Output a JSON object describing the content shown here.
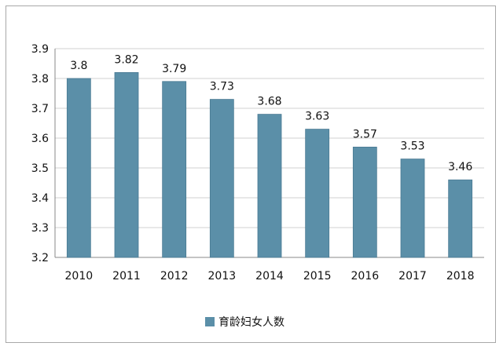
{
  "chart_data": {
    "type": "bar",
    "categories": [
      "2010",
      "2011",
      "2012",
      "2013",
      "2014",
      "2015",
      "2016",
      "2017",
      "2018"
    ],
    "series": [
      {
        "name": "育龄妇女人数",
        "values": [
          3.8,
          3.82,
          3.79,
          3.73,
          3.68,
          3.63,
          3.57,
          3.53,
          3.46
        ],
        "data_labels": [
          "3.8",
          "3.82",
          "3.79",
          "3.73",
          "3.68",
          "3.63",
          "3.57",
          "3.53",
          "3.46"
        ]
      }
    ],
    "ylim": [
      3.2,
      3.9
    ],
    "yticks": [
      "3.2",
      "3.3",
      "3.4",
      "3.5",
      "3.6",
      "3.7",
      "3.8",
      "3.9"
    ],
    "grid": true,
    "legend_position": "bottom-center",
    "colors": {
      "bar": "#5b8fa8",
      "bar_edge": "#4a7a93",
      "grid": "#d0d0d0",
      "axis": "#888888",
      "text": "#111111"
    }
  }
}
